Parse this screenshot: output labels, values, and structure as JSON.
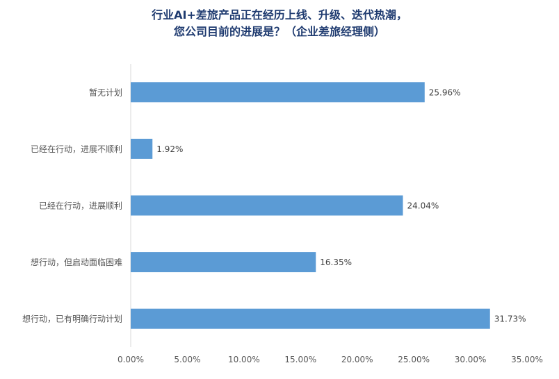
{
  "chart_data": {
    "type": "bar",
    "orientation": "horizontal",
    "title_lines": [
      "行业AI+差旅产品正在经历上线、升级、迭代热潮，",
      "您公司目前的进展是？（企业差旅经理侧）"
    ],
    "categories": [
      "暂无计划",
      "已经在行动，进展不顺利",
      "已经在行动，进展顺利",
      "想行动，但启动面临困难",
      "想行动，已有明确行动计划"
    ],
    "values": [
      25.96,
      1.92,
      24.04,
      16.35,
      31.73
    ],
    "data_labels": [
      "25.96%",
      "1.92%",
      "24.04%",
      "16.35%",
      "31.73%"
    ],
    "xlim": [
      0,
      35
    ],
    "xticks": [
      0,
      5,
      10,
      15,
      20,
      25,
      30,
      35
    ],
    "xtick_labels": [
      "0.00%",
      "5.00%",
      "10.00%",
      "15.00%",
      "20.00%",
      "25.00%",
      "30.00%",
      "35.00%"
    ],
    "grid": false,
    "legend": "none",
    "bar_color": "#5b9bd5",
    "title_color": "#1f3b70",
    "text_color": "#595959",
    "axis_color": "#d9d9d9"
  }
}
